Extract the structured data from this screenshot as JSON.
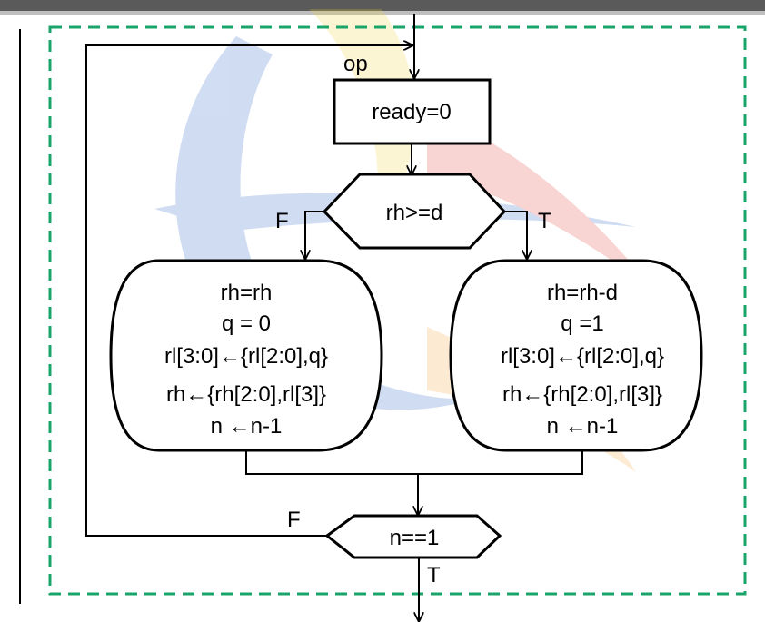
{
  "colors": {
    "border_dash": "#1aa46a",
    "top_bar": "#5a5a5a",
    "watermark_blue": "#2f66c8",
    "watermark_yellow": "#f3d43a",
    "watermark_red": "#e0433a",
    "watermark_orange": "#f5a23a"
  },
  "state": {
    "name": "op"
  },
  "box_ready": {
    "text": "ready=0"
  },
  "decision1": {
    "text": "rh>=d",
    "false_label": "F",
    "true_label": "T"
  },
  "left_block": {
    "lines": [
      "rh=rh",
      "q = 0",
      "rl[3:0]←{rl[2:0],q}",
      "rh←{rh[2:0],rl[3]}",
      "n ←n-1"
    ]
  },
  "right_block": {
    "lines": [
      "rh=rh-d",
      "q =1",
      "rl[3:0]←{rl[2:0],q}",
      "rh←{rh[2:0],rl[3]}",
      "n ←n-1"
    ]
  },
  "decision2": {
    "text": "n==1",
    "false_label": "F",
    "true_label": "T"
  }
}
